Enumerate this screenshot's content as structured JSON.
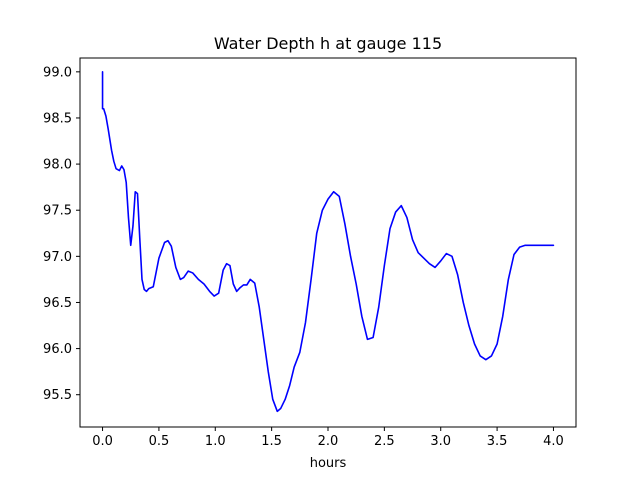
{
  "chart_data": {
    "type": "line",
    "title": "Water Depth h at gauge 115",
    "xlabel": "hours",
    "ylabel": "",
    "xlim": [
      -0.2,
      4.2
    ],
    "ylim": [
      95.15,
      99.15
    ],
    "xticks": [
      0.0,
      0.5,
      1.0,
      1.5,
      2.0,
      2.5,
      3.0,
      3.5,
      4.0
    ],
    "xtick_labels": [
      "0.0",
      "0.5",
      "1.0",
      "1.5",
      "2.0",
      "2.5",
      "3.0",
      "3.5",
      "4.0"
    ],
    "yticks": [
      95.5,
      96.0,
      96.5,
      97.0,
      97.5,
      98.0,
      98.5,
      99.0
    ],
    "ytick_labels": [
      "95.5",
      "96.0",
      "96.5",
      "97.0",
      "97.5",
      "98.0",
      "98.5",
      "99.0"
    ],
    "grid": false,
    "line_color": "#0000ff",
    "series": [
      {
        "x": [
          0.0,
          0.0,
          0.0,
          0.01,
          0.03,
          0.05,
          0.08,
          0.1,
          0.12,
          0.15,
          0.17,
          0.19,
          0.21,
          0.23,
          0.25,
          0.27,
          0.29,
          0.31,
          0.33,
          0.35,
          0.37,
          0.39,
          0.41,
          0.45,
          0.5,
          0.55,
          0.58,
          0.61,
          0.65,
          0.69,
          0.72,
          0.76,
          0.8,
          0.85,
          0.9,
          0.95,
          0.99,
          1.03,
          1.07,
          1.1,
          1.13,
          1.16,
          1.19,
          1.22,
          1.25,
          1.28,
          1.31,
          1.35,
          1.39,
          1.43,
          1.47,
          1.51,
          1.55,
          1.58,
          1.62,
          1.66,
          1.7,
          1.75,
          1.8,
          1.85,
          1.9,
          1.95,
          2.0,
          2.05,
          2.1,
          2.15,
          2.2,
          2.25,
          2.3,
          2.35,
          2.4,
          2.45,
          2.5,
          2.55,
          2.6,
          2.65,
          2.7,
          2.75,
          2.8,
          2.85,
          2.9,
          2.95,
          3.0,
          3.05,
          3.1,
          3.15,
          3.2,
          3.25,
          3.3,
          3.35,
          3.4,
          3.45,
          3.5,
          3.55,
          3.6,
          3.65,
          3.7,
          3.75,
          3.8,
          3.85,
          3.9,
          3.95,
          4.0
        ],
        "y": [
          99.0,
          98.62,
          98.6,
          98.6,
          98.52,
          98.38,
          98.15,
          98.03,
          97.95,
          97.93,
          97.98,
          97.94,
          97.8,
          97.42,
          97.12,
          97.33,
          97.7,
          97.68,
          97.2,
          96.75,
          96.64,
          96.62,
          96.65,
          96.67,
          96.98,
          97.15,
          97.17,
          97.11,
          96.88,
          96.75,
          96.77,
          96.84,
          96.82,
          96.75,
          96.7,
          96.62,
          96.57,
          96.6,
          96.85,
          96.92,
          96.9,
          96.7,
          96.62,
          96.66,
          96.69,
          96.69,
          96.75,
          96.71,
          96.45,
          96.1,
          95.75,
          95.45,
          95.32,
          95.35,
          95.45,
          95.6,
          95.8,
          95.96,
          96.28,
          96.75,
          97.25,
          97.5,
          97.62,
          97.7,
          97.65,
          97.35,
          97.0,
          96.7,
          96.35,
          96.1,
          96.12,
          96.45,
          96.9,
          97.3,
          97.48,
          97.55,
          97.42,
          97.18,
          97.04,
          96.98,
          96.92,
          96.88,
          96.95,
          97.03,
          97.0,
          96.8,
          96.5,
          96.25,
          96.05,
          95.92,
          95.88,
          95.92,
          96.05,
          96.35,
          96.75,
          97.02,
          97.1,
          97.12,
          97.12,
          97.12,
          97.12,
          97.12,
          97.12
        ]
      }
    ]
  }
}
